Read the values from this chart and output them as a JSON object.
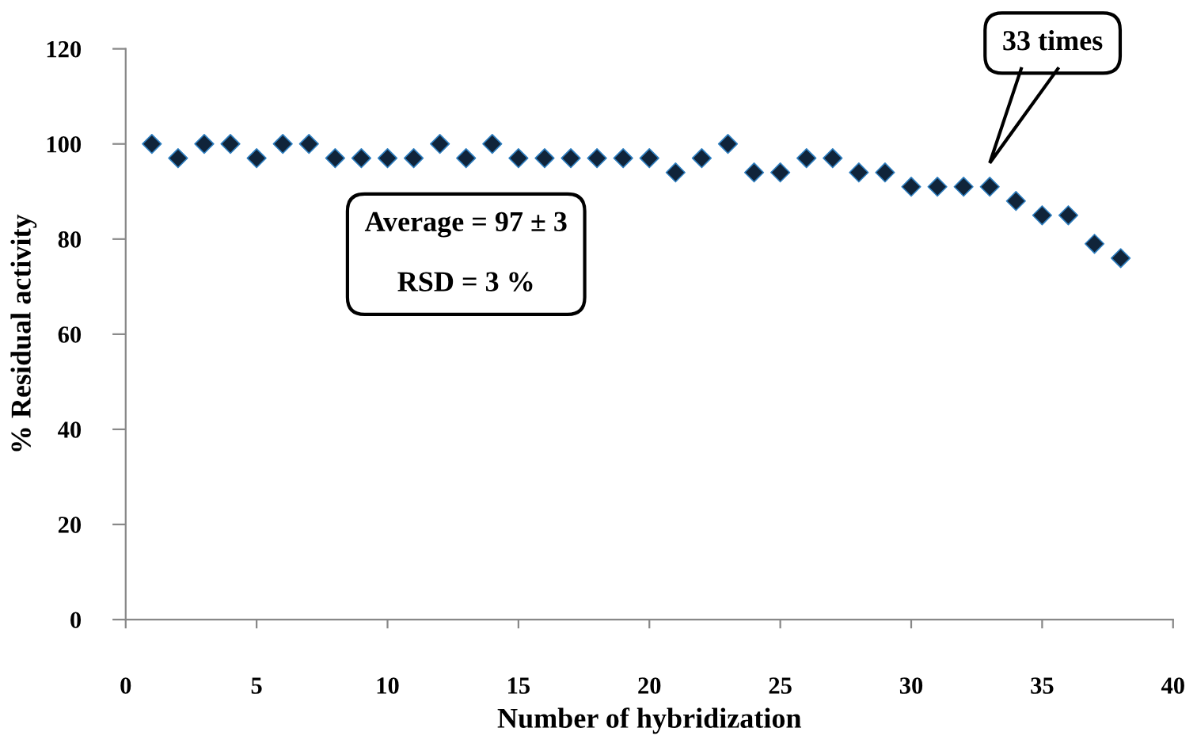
{
  "chart_data": {
    "type": "scatter",
    "xlabel": "Number of hybridization",
    "ylabel": "% Residual activity",
    "x": [
      1,
      2,
      3,
      4,
      5,
      6,
      7,
      8,
      9,
      10,
      11,
      12,
      13,
      14,
      15,
      16,
      17,
      18,
      19,
      20,
      21,
      22,
      23,
      24,
      25,
      26,
      27,
      28,
      29,
      30,
      31,
      32,
      33,
      34,
      35,
      36,
      37,
      38
    ],
    "series": [
      {
        "color": "#10243a",
        "values": [
          100,
          97,
          100,
          100,
          97,
          100,
          100,
          97,
          97,
          97,
          97,
          100,
          97,
          100,
          97,
          97,
          97,
          97,
          97,
          97,
          94,
          97,
          100,
          94,
          94,
          97,
          97,
          94,
          94,
          91,
          91,
          91,
          91,
          88,
          85,
          85,
          79,
          76
        ]
      }
    ],
    "marker": "diamond",
    "xlim": [
      0,
      40
    ],
    "xticks": [
      0,
      5,
      10,
      15,
      20,
      25,
      30,
      35,
      40
    ],
    "ylim": [
      0,
      120
    ],
    "yticks": [
      0,
      20,
      40,
      60,
      80,
      100,
      120
    ],
    "grid": false,
    "annotations": [
      "33 times",
      "Average = 97 ± 3\n\nRSD = 3 %"
    ]
  }
}
